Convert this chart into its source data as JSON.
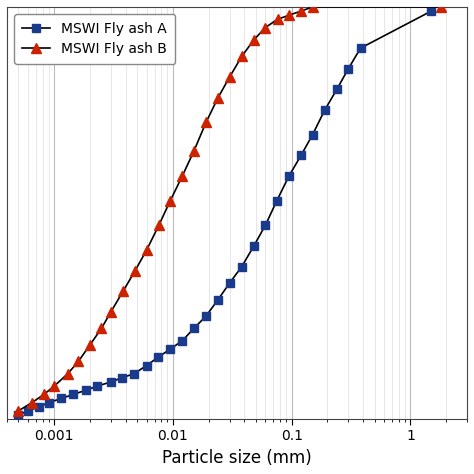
{
  "title": "",
  "xlabel": "Particle size (mm)",
  "xlim": [
    0.0004,
    3.0
  ],
  "ylim": [
    0,
    100
  ],
  "series_A": {
    "label": "MSWI Fly ash A",
    "color": "#1a3a8c",
    "marker": "s",
    "markersize": 6,
    "x": [
      0.0005,
      0.0006,
      0.00075,
      0.0009,
      0.00115,
      0.00145,
      0.00185,
      0.0023,
      0.003,
      0.0037,
      0.0047,
      0.006,
      0.0075,
      0.0095,
      0.012,
      0.015,
      0.019,
      0.024,
      0.03,
      0.038,
      0.048,
      0.06,
      0.075,
      0.095,
      0.12,
      0.15,
      0.19,
      0.24,
      0.3,
      0.38,
      1.5
    ],
    "y": [
      1,
      2,
      3,
      4,
      5,
      6,
      7,
      8,
      9,
      10,
      11,
      13,
      15,
      17,
      19,
      22,
      25,
      29,
      33,
      37,
      42,
      47,
      53,
      59,
      64,
      69,
      75,
      80,
      85,
      90,
      99
    ]
  },
  "series_B": {
    "label": "MSWI Fly ash B",
    "color": "#cc2200",
    "marker": "^",
    "markersize": 7,
    "x": [
      0.0005,
      0.00065,
      0.00082,
      0.001,
      0.0013,
      0.0016,
      0.002,
      0.0025,
      0.003,
      0.0038,
      0.0048,
      0.006,
      0.0076,
      0.0095,
      0.012,
      0.015,
      0.019,
      0.024,
      0.03,
      0.038,
      0.048,
      0.06,
      0.076,
      0.095,
      0.12,
      0.15,
      1.8
    ],
    "y": [
      2,
      4,
      6,
      8,
      11,
      14,
      18,
      22,
      26,
      31,
      36,
      41,
      47,
      53,
      59,
      65,
      72,
      78,
      83,
      88,
      92,
      95,
      97,
      98,
      99,
      100,
      100
    ]
  },
  "line_color": "#000000",
  "grid_major_color": "#bbbbbb",
  "grid_minor_color": "#dddddd",
  "background_color": "#ffffff",
  "legend_fontsize": 10,
  "xlabel_fontsize": 12
}
